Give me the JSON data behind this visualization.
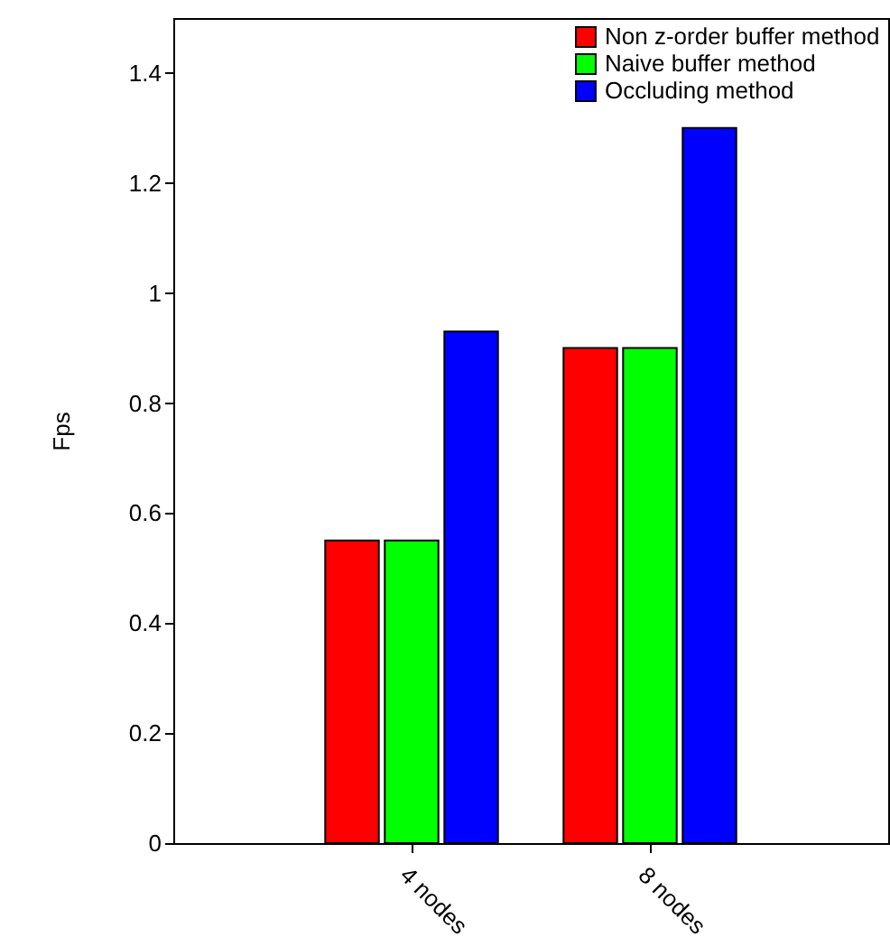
{
  "chart_data": {
    "type": "bar",
    "ylabel": "Fps",
    "categories": [
      "4 nodes",
      "8 nodes"
    ],
    "series": [
      {
        "name": "Non z-order buffer method",
        "color": "#ff0000",
        "values": [
          0.55,
          0.9
        ]
      },
      {
        "name": "Naive buffer method",
        "color": "#00ff00",
        "values": [
          0.55,
          0.9
        ]
      },
      {
        "name": "Occluding method",
        "color": "#0000ff",
        "values": [
          0.93,
          1.3
        ]
      }
    ],
    "ylim": [
      0,
      1.5
    ],
    "yticks": [
      0,
      0.2,
      0.4,
      0.6,
      0.8,
      1,
      1.2,
      1.4
    ],
    "grid": false,
    "legend": "top right"
  }
}
